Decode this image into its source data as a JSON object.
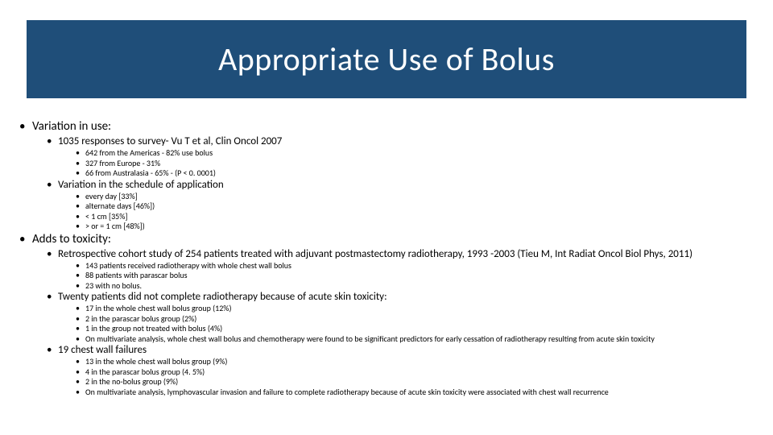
{
  "title_bar": {
    "text": "Appropriate Use of Bolus",
    "background_color": "#1f4e79",
    "text_color": "#ffffff"
  },
  "colors": {
    "slide_bg": "#ffffff",
    "text": "#000000"
  },
  "bullets": {
    "a": {
      "heading": "Variation in use:",
      "s1": {
        "heading": "1035 responses to survey- Vu T et al, Clin Oncol 2007",
        "i1": "642 from the Americas - 82% use bolus",
        "i2": "327 from Europe - 31%",
        "i3": "66 from Australasia - 65%  - (P < 0. 0001)"
      },
      "s2": {
        "heading": "Variation in the schedule of application",
        "i1": "every day [33%]",
        "i2": "alternate days [46%])",
        "i3": "< 1 cm [35%]",
        "i4": "> or = 1 cm [48%])"
      }
    },
    "b": {
      "heading": "Adds to toxicity:",
      "s1": {
        "heading": "Retrospective cohort study of 254 patients treated with adjuvant postmastectomy  radiotherapy, 1993 -2003 (Tieu M, Int Radiat Oncol Biol Phys, 2011)",
        "i1": "143 patients received radiotherapy with whole chest wall bolus",
        "i2": "88 patients with parascar bolus",
        "i3": "23 with no bolus."
      },
      "s2": {
        "heading": "Twenty patients did not complete radiotherapy because of acute skin toxicity:",
        "i1": "17 in the whole chest wall bolus group (12%)",
        "i2": "2 in the parascar bolus group (2%)",
        "i3": "1 in the group not treated with bolus (4%)",
        "i4": "On multivariate analysis, whole chest wall bolus and chemotherapy were found to be significant predictors for early cessation of radiotherapy resulting from acute skin toxicity"
      },
      "s3": {
        "heading": "19 chest wall failures",
        "i1": "13 in the whole chest wall bolus group (9%)",
        "i2": "4 in the parascar bolus group (4. 5%)",
        "i3": "2 in the no-bolus group (9%)",
        "i4": "On multivariate analysis, lymphovascular invasion and failure to complete radiotherapy because of acute skin toxicity were associated with chest wall recurrence"
      }
    }
  }
}
